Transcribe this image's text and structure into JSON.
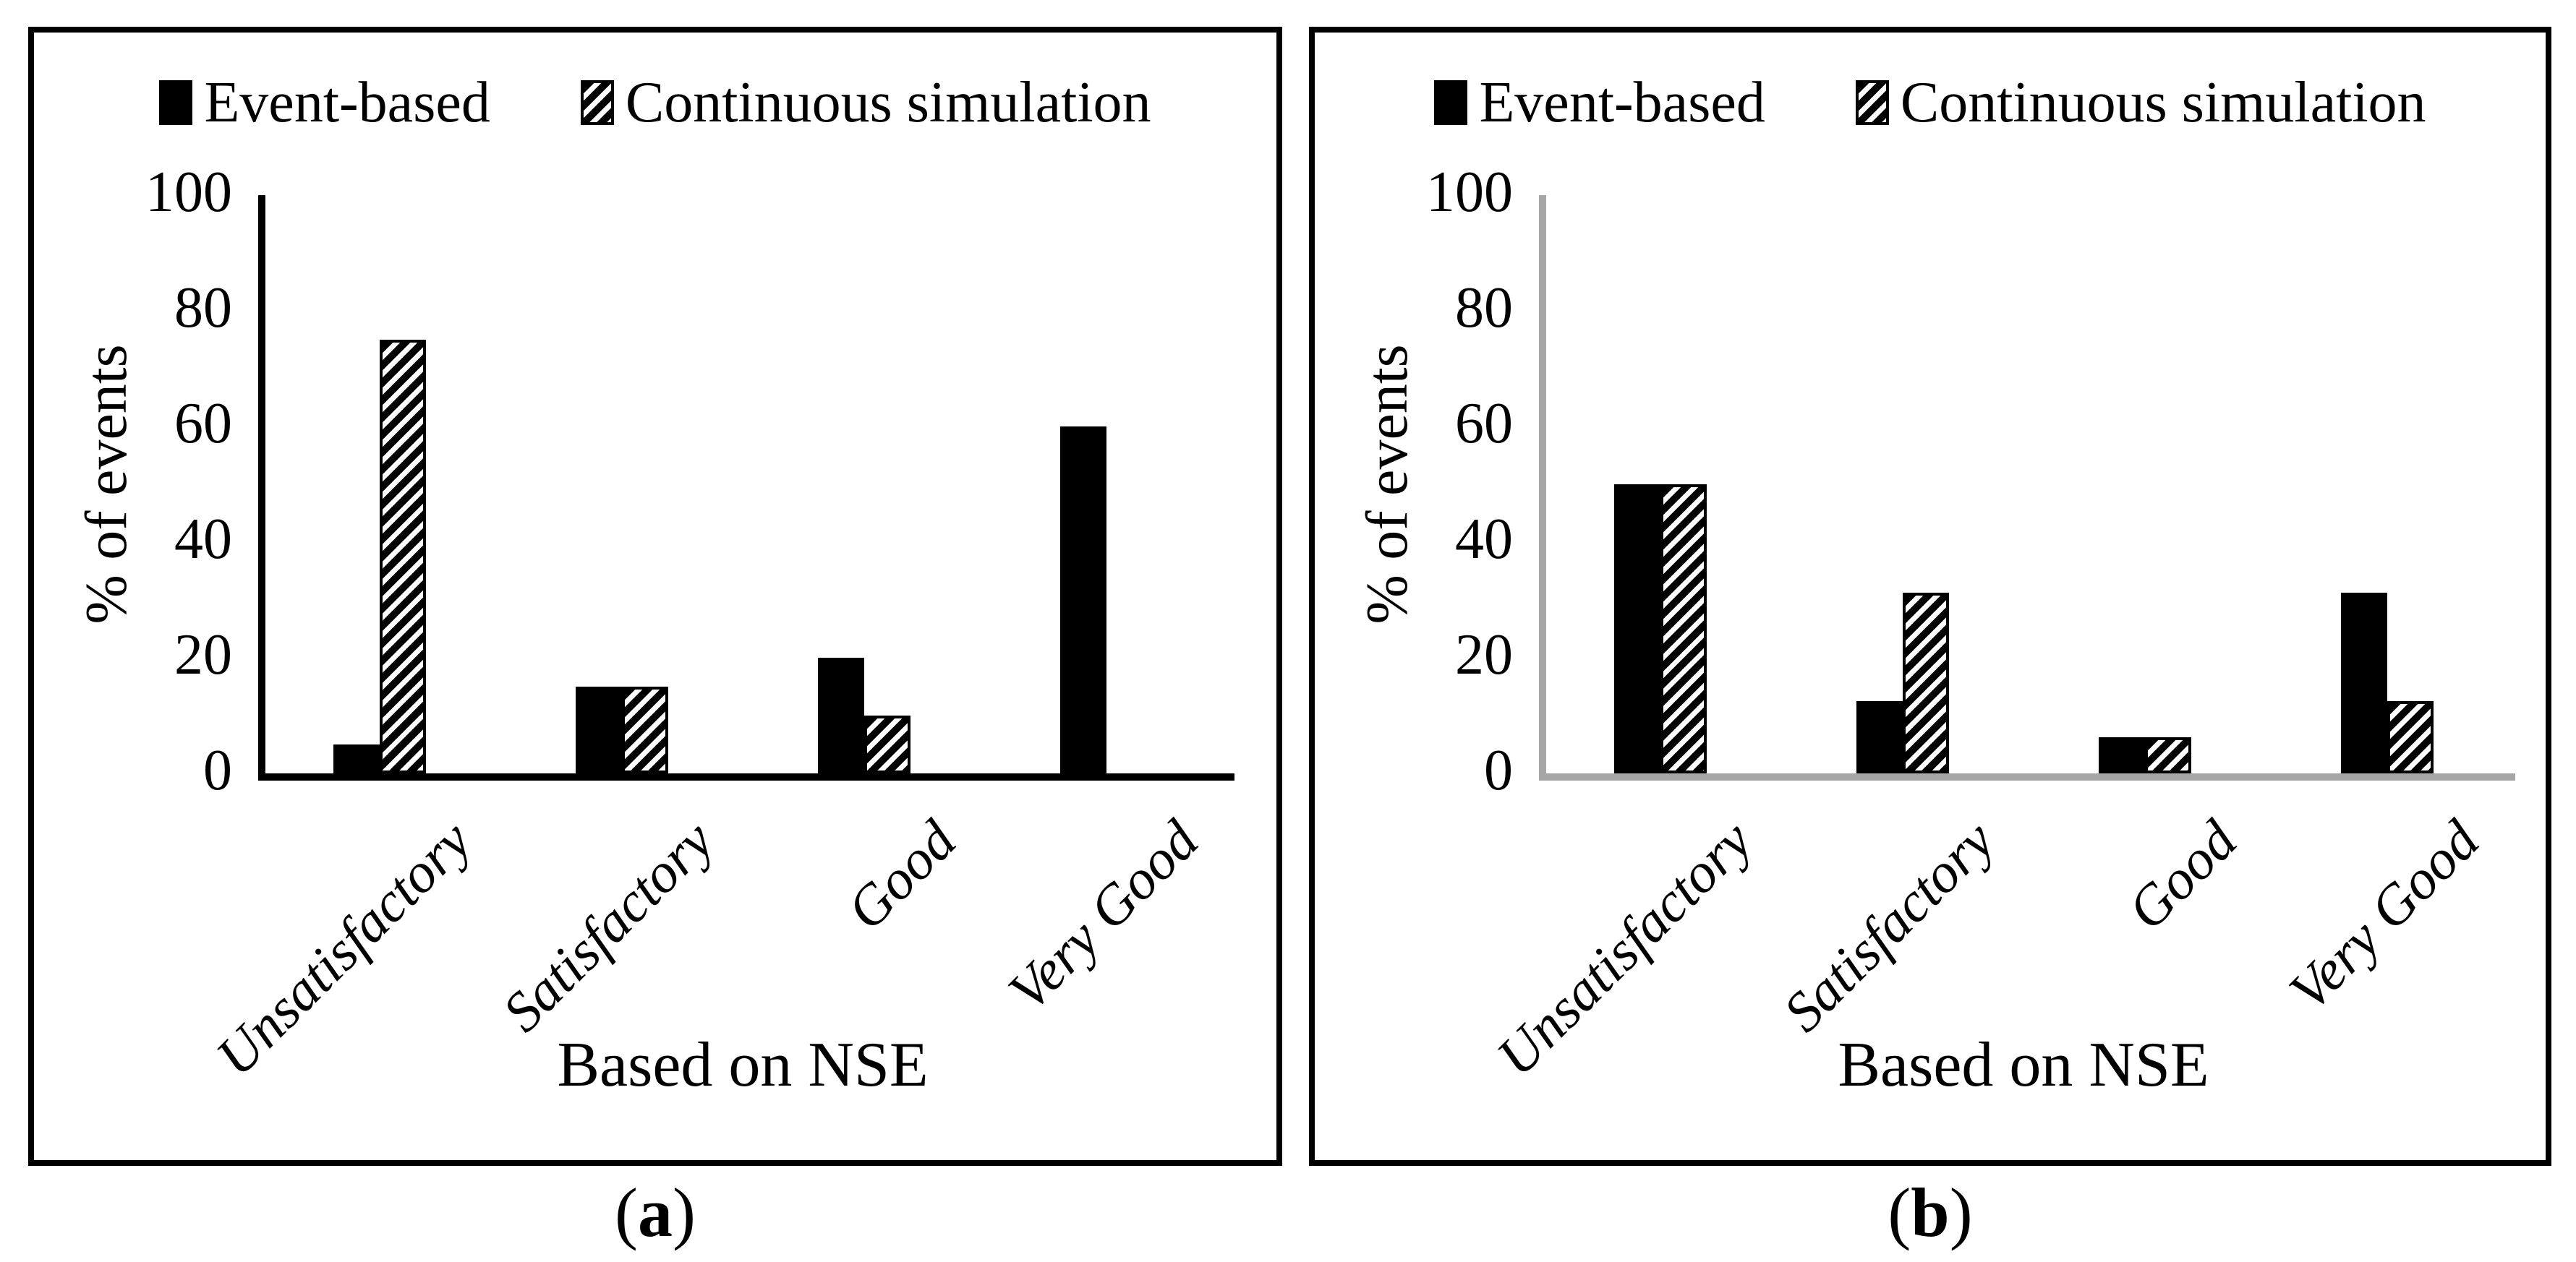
{
  "figure": {
    "background": "#ffffff",
    "text_color": "#000000",
    "panel_border_color": "#000000"
  },
  "chart_data": [
    {
      "type": "bar",
      "panel": "a",
      "caption": {
        "open": "(",
        "letter": "a",
        "close": ")"
      },
      "xlabel": "Based on NSE",
      "ylabel": "% of events",
      "categories": [
        "Unsatisfactory",
        "Satisfactory",
        "Good",
        "Very Good"
      ],
      "series": [
        {
          "name": "Event-based",
          "pattern": "solid",
          "values": [
            5,
            15,
            20,
            60
          ]
        },
        {
          "name": "Continuous simulation",
          "pattern": "hatch",
          "values": [
            75,
            15,
            10,
            0
          ]
        }
      ],
      "ylim": [
        0,
        100
      ],
      "yticks": [
        0,
        20,
        40,
        60,
        80,
        100
      ],
      "grid": false,
      "legend_position": "top",
      "axis_color": "#000000",
      "bar_color": "#000000",
      "hatch_colors": {
        "foreground": "#000000",
        "background": "#ffffff"
      }
    },
    {
      "type": "bar",
      "panel": "b",
      "caption": {
        "open": "(",
        "letter": "b",
        "close": ")"
      },
      "xlabel": "Based on NSE",
      "ylabel": "% of events",
      "categories": [
        "Unsatisfactory",
        "Satisfactory",
        "Good",
        "Very Good"
      ],
      "series": [
        {
          "name": "Event-based",
          "pattern": "solid",
          "values": [
            50,
            12.5,
            6.25,
            31.25
          ]
        },
        {
          "name": "Continuous simulation",
          "pattern": "hatch",
          "values": [
            50,
            31.25,
            6.25,
            12.5
          ]
        }
      ],
      "ylim": [
        0,
        100
      ],
      "yticks": [
        0,
        20,
        40,
        60,
        80,
        100
      ],
      "grid": false,
      "legend_position": "top",
      "axis_color": "#a6a6a6",
      "bar_color": "#000000",
      "hatch_colors": {
        "foreground": "#000000",
        "background": "#ffffff"
      }
    }
  ]
}
